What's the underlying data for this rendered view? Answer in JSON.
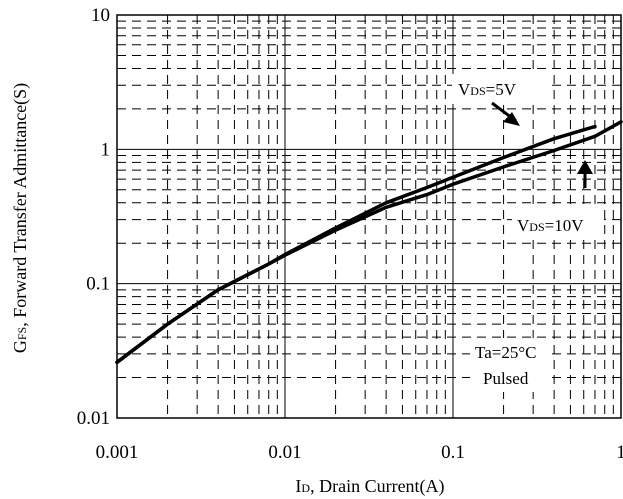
{
  "chart_data": {
    "type": "line",
    "xscale": "log",
    "yscale": "log",
    "xlim": [
      0.001,
      1
    ],
    "ylim": [
      0.01,
      10
    ],
    "grid": true,
    "x_ticks": [
      "0.001",
      "0.01",
      "0.1",
      "1"
    ],
    "y_ticks": [
      "0.01",
      "0.1",
      "1",
      "10"
    ],
    "xlabel": {
      "main": "I",
      "sub": "D",
      "rest": ", Drain Current(A)"
    },
    "ylabel": {
      "main": "G",
      "sub": "FS",
      "rest": ", Forward Transfer Admittance(S)"
    },
    "series": [
      {
        "name": {
          "main": "V",
          "sub": "DS",
          "rest": "=5V"
        },
        "x": [
          0.001,
          0.002,
          0.004,
          0.008,
          0.01,
          0.02,
          0.04,
          0.07,
          0.1,
          0.2,
          0.4,
          0.7
        ],
        "y": [
          0.026,
          0.05,
          0.09,
          0.14,
          0.165,
          0.26,
          0.4,
          0.52,
          0.62,
          0.87,
          1.2,
          1.48
        ]
      },
      {
        "name": {
          "main": "V",
          "sub": "DS",
          "rest": "=10V"
        },
        "x": [
          0.001,
          0.002,
          0.004,
          0.008,
          0.01,
          0.02,
          0.04,
          0.07,
          0.1,
          0.2,
          0.4,
          0.7,
          1.0
        ],
        "y": [
          0.026,
          0.05,
          0.09,
          0.14,
          0.163,
          0.25,
          0.37,
          0.46,
          0.55,
          0.74,
          0.98,
          1.25,
          1.6
        ]
      }
    ],
    "annotations": {
      "conditions": [
        "Ta=25°C",
        "Pulsed"
      ]
    }
  }
}
